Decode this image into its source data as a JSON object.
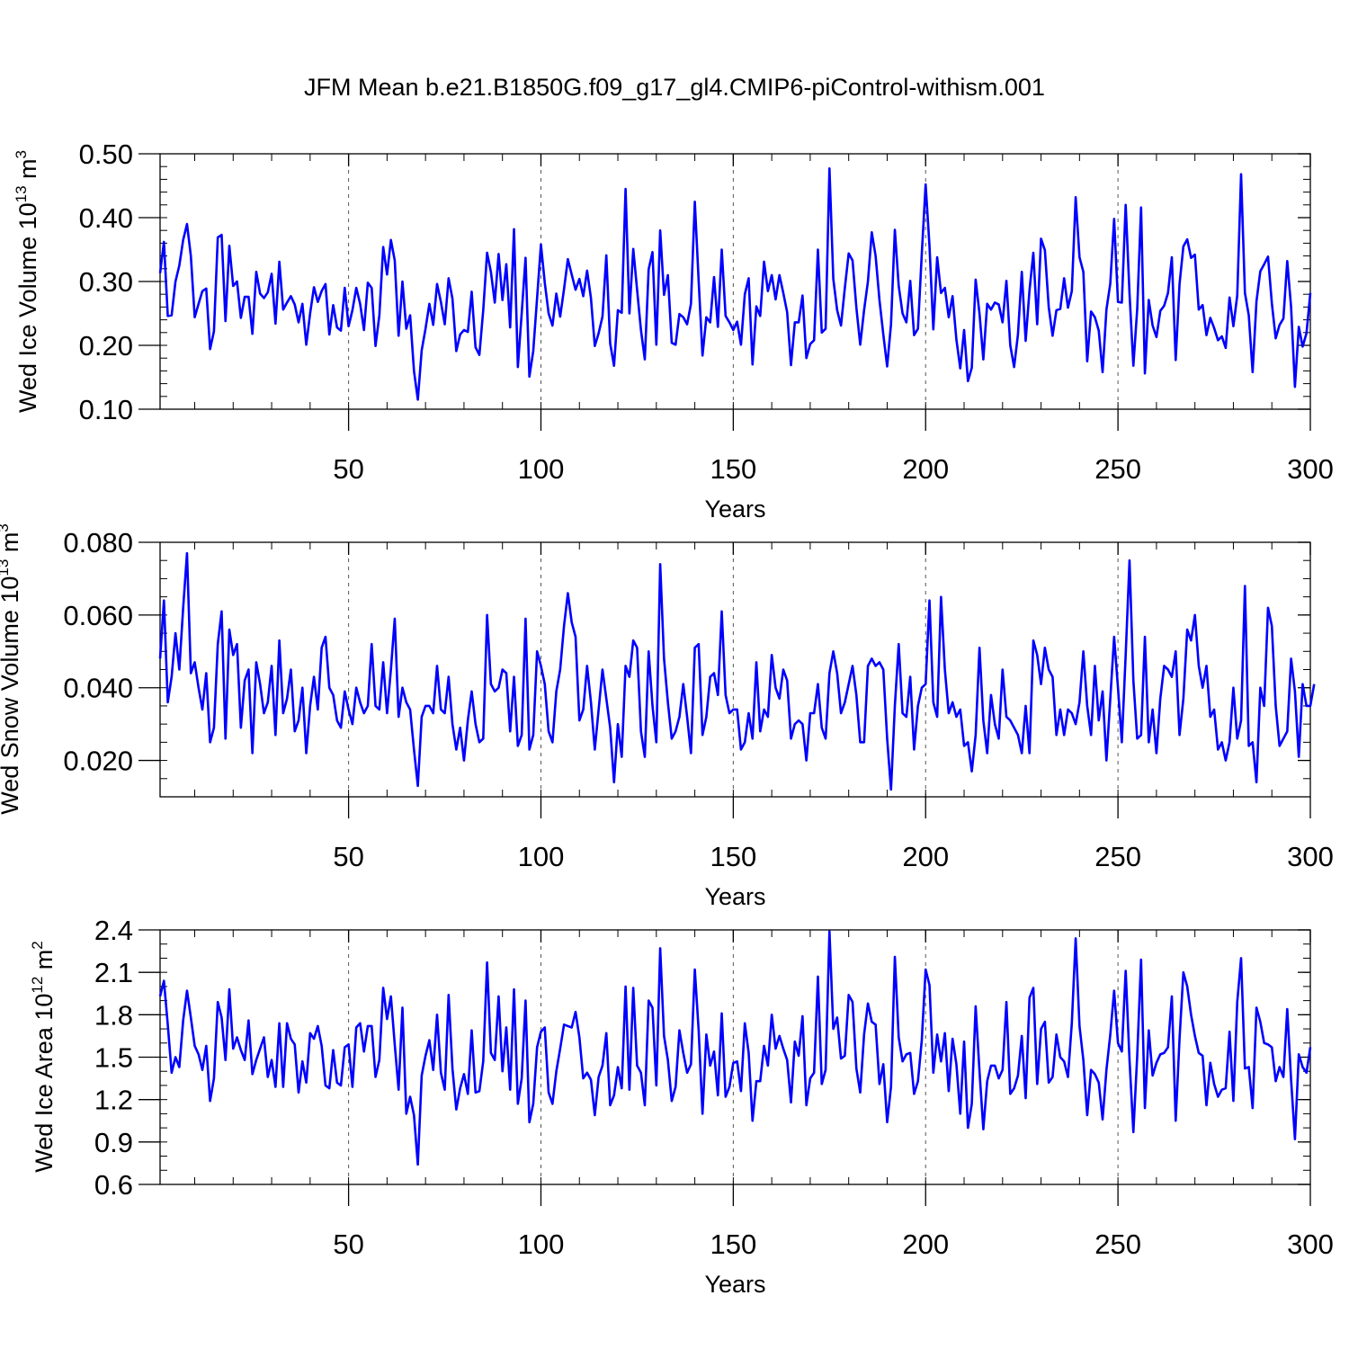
{
  "title": "JFM Mean b.e21.B1850G.f09_g17_gl4.CMIP6-piControl-withism.001",
  "colors": {
    "series": "#0000ff",
    "axis": "#000000",
    "grid": "#555555"
  },
  "chart_data": [
    {
      "type": "line",
      "ylabel_main": "Wed Ice Volume 10",
      "ylabel_exp": "13",
      "ylabel_unit": " m",
      "ylabel_unit_exp": "3",
      "xlabel": "Years",
      "xlim": [
        1,
        300
      ],
      "ylim": [
        0.1,
        0.5
      ],
      "x_ticks": [
        50,
        100,
        150,
        200,
        250,
        300
      ],
      "y_ticks": [
        "0.10",
        "0.20",
        "0.30",
        "0.40",
        "0.50"
      ],
      "y_minor": 0.02,
      "grid_x": [
        50,
        100,
        150,
        200,
        250
      ],
      "series": [
        {
          "name": "Wed Ice Volume",
          "values": [
            0.313,
            0.362,
            0.246,
            0.247,
            0.3,
            0.325,
            0.365,
            0.39,
            0.34,
            0.244,
            0.265,
            0.285,
            0.289,
            0.194,
            0.222,
            0.369,
            0.373,
            0.238,
            0.356,
            0.293,
            0.3,
            0.243,
            0.276,
            0.276,
            0.218,
            0.315,
            0.281,
            0.274,
            0.283,
            0.312,
            0.234,
            0.331,
            0.256,
            0.267,
            0.277,
            0.264,
            0.236,
            0.265,
            0.201,
            0.25,
            0.291,
            0.268,
            0.285,
            0.296,
            0.217,
            0.263,
            0.228,
            0.223,
            0.29,
            0.23,
            0.255,
            0.29,
            0.265,
            0.224,
            0.298,
            0.29,
            0.199,
            0.247,
            0.354,
            0.311,
            0.365,
            0.333,
            0.215,
            0.3,
            0.226,
            0.247,
            0.16,
            0.115,
            0.192,
            0.226,
            0.265,
            0.232,
            0.296,
            0.268,
            0.233,
            0.305,
            0.273,
            0.191,
            0.217,
            0.224,
            0.221,
            0.284,
            0.197,
            0.185,
            0.255,
            0.345,
            0.315,
            0.267,
            0.343,
            0.271,
            0.327,
            0.228,
            0.382,
            0.166,
            0.25,
            0.337,
            0.151,
            0.191,
            0.274,
            0.358,
            0.298,
            0.25,
            0.231,
            0.281,
            0.245,
            0.288,
            0.335,
            0.311,
            0.287,
            0.304,
            0.277,
            0.317,
            0.274,
            0.199,
            0.219,
            0.245,
            0.341,
            0.203,
            0.168,
            0.255,
            0.251,
            0.445,
            0.25,
            0.351,
            0.287,
            0.224,
            0.178,
            0.319,
            0.346,
            0.201,
            0.38,
            0.279,
            0.31,
            0.204,
            0.201,
            0.249,
            0.244,
            0.233,
            0.265,
            0.425,
            0.301,
            0.184,
            0.244,
            0.236,
            0.307,
            0.229,
            0.35,
            0.246,
            0.236,
            0.224,
            0.237,
            0.201,
            0.28,
            0.305,
            0.17,
            0.261,
            0.246,
            0.331,
            0.285,
            0.31,
            0.272,
            0.31,
            0.282,
            0.252,
            0.169,
            0.236,
            0.236,
            0.278,
            0.18,
            0.202,
            0.208,
            0.35,
            0.22,
            0.226,
            0.477,
            0.304,
            0.255,
            0.231,
            0.29,
            0.344,
            0.333,
            0.259,
            0.201,
            0.255,
            0.3,
            0.377,
            0.34,
            0.271,
            0.217,
            0.167,
            0.233,
            0.381,
            0.293,
            0.25,
            0.236,
            0.301,
            0.216,
            0.226,
            0.343,
            0.452,
            0.356,
            0.225,
            0.338,
            0.282,
            0.29,
            0.244,
            0.277,
            0.209,
            0.164,
            0.224,
            0.144,
            0.165,
            0.303,
            0.25,
            0.178,
            0.265,
            0.256,
            0.267,
            0.264,
            0.236,
            0.301,
            0.2,
            0.166,
            0.217,
            0.315,
            0.207,
            0.286,
            0.345,
            0.233,
            0.367,
            0.349,
            0.26,
            0.215,
            0.255,
            0.257,
            0.305,
            0.259,
            0.285,
            0.432,
            0.338,
            0.315,
            0.175,
            0.253,
            0.244,
            0.223,
            0.158,
            0.256,
            0.297,
            0.398,
            0.268,
            0.267,
            0.42,
            0.281,
            0.168,
            0.257,
            0.416,
            0.156,
            0.271,
            0.231,
            0.213,
            0.254,
            0.262,
            0.282,
            0.338,
            0.177,
            0.296,
            0.355,
            0.366,
            0.337,
            0.342,
            0.256,
            0.263,
            0.216,
            0.243,
            0.227,
            0.208,
            0.214,
            0.196,
            0.275,
            0.23,
            0.278,
            0.468,
            0.282,
            0.247,
            0.158,
            0.269,
            0.316,
            0.327,
            0.339,
            0.266,
            0.211,
            0.232,
            0.242,
            0.332,
            0.26,
            0.135,
            0.229,
            0.198,
            0.219,
            0.282
          ]
        }
      ]
    },
    {
      "type": "line",
      "ylabel_main": "Wed Snow Volume 10",
      "ylabel_exp": "13",
      "ylabel_unit": " m",
      "ylabel_unit_exp": "3",
      "xlabel": "Years",
      "xlim": [
        1,
        300
      ],
      "ylim": [
        0.01,
        0.08
      ],
      "x_ticks": [
        50,
        100,
        150,
        200,
        250,
        300
      ],
      "y_ticks": [
        "0.020",
        "0.040",
        "0.060",
        "0.080"
      ],
      "y_minor": 0.005,
      "grid_x": [
        50,
        100,
        150,
        200,
        250
      ],
      "series": [
        {
          "name": "Wed Snow Volume",
          "values": [
            0.048,
            0.064,
            0.036,
            0.043,
            0.055,
            0.045,
            0.062,
            0.077,
            0.044,
            0.047,
            0.04,
            0.034,
            0.044,
            0.025,
            0.029,
            0.052,
            0.061,
            0.026,
            0.056,
            0.049,
            0.052,
            0.029,
            0.042,
            0.045,
            0.022,
            0.047,
            0.041,
            0.033,
            0.036,
            0.046,
            0.027,
            0.053,
            0.033,
            0.037,
            0.045,
            0.028,
            0.031,
            0.04,
            0.022,
            0.035,
            0.043,
            0.034,
            0.051,
            0.054,
            0.04,
            0.038,
            0.031,
            0.029,
            0.039,
            0.034,
            0.03,
            0.04,
            0.036,
            0.033,
            0.035,
            0.052,
            0.035,
            0.034,
            0.047,
            0.033,
            0.045,
            0.059,
            0.032,
            0.04,
            0.036,
            0.034,
            0.023,
            0.013,
            0.032,
            0.035,
            0.035,
            0.033,
            0.046,
            0.034,
            0.033,
            0.043,
            0.03,
            0.023,
            0.029,
            0.02,
            0.031,
            0.039,
            0.03,
            0.025,
            0.026,
            0.06,
            0.041,
            0.039,
            0.04,
            0.045,
            0.044,
            0.028,
            0.043,
            0.024,
            0.027,
            0.059,
            0.023,
            0.027,
            0.05,
            0.046,
            0.041,
            0.028,
            0.025,
            0.039,
            0.045,
            0.057,
            0.066,
            0.058,
            0.054,
            0.031,
            0.034,
            0.046,
            0.036,
            0.023,
            0.034,
            0.045,
            0.037,
            0.029,
            0.014,
            0.03,
            0.021,
            0.046,
            0.043,
            0.053,
            0.051,
            0.028,
            0.021,
            0.05,
            0.035,
            0.025,
            0.074,
            0.048,
            0.036,
            0.026,
            0.028,
            0.032,
            0.041,
            0.032,
            0.022,
            0.051,
            0.052,
            0.027,
            0.032,
            0.043,
            0.044,
            0.038,
            0.061,
            0.038,
            0.033,
            0.034,
            0.034,
            0.023,
            0.025,
            0.033,
            0.026,
            0.047,
            0.028,
            0.034,
            0.032,
            0.049,
            0.04,
            0.037,
            0.045,
            0.042,
            0.026,
            0.03,
            0.031,
            0.03,
            0.02,
            0.033,
            0.033,
            0.041,
            0.029,
            0.026,
            0.044,
            0.05,
            0.044,
            0.033,
            0.036,
            0.041,
            0.046,
            0.038,
            0.025,
            0.025,
            0.046,
            0.048,
            0.046,
            0.047,
            0.045,
            0.026,
            0.012,
            0.035,
            0.052,
            0.033,
            0.032,
            0.043,
            0.023,
            0.035,
            0.04,
            0.041,
            0.064,
            0.036,
            0.032,
            0.065,
            0.045,
            0.033,
            0.036,
            0.032,
            0.034,
            0.024,
            0.025,
            0.017,
            0.027,
            0.051,
            0.031,
            0.022,
            0.038,
            0.03,
            0.026,
            0.045,
            0.032,
            0.031,
            0.029,
            0.027,
            0.022,
            0.035,
            0.022,
            0.053,
            0.049,
            0.041,
            0.051,
            0.045,
            0.043,
            0.027,
            0.034,
            0.027,
            0.034,
            0.033,
            0.03,
            0.036,
            0.05,
            0.035,
            0.027,
            0.046,
            0.031,
            0.039,
            0.02,
            0.037,
            0.054,
            0.04,
            0.025,
            0.049,
            0.075,
            0.042,
            0.026,
            0.027,
            0.054,
            0.025,
            0.034,
            0.022,
            0.037,
            0.046,
            0.045,
            0.043,
            0.05,
            0.027,
            0.037,
            0.056,
            0.053,
            0.06,
            0.046,
            0.04,
            0.046,
            0.032,
            0.034,
            0.023,
            0.025,
            0.02,
            0.025,
            0.04,
            0.026,
            0.031,
            0.068,
            0.024,
            0.025,
            0.014,
            0.04,
            0.035,
            0.062,
            0.057,
            0.035,
            0.024,
            0.026,
            0.028,
            0.048,
            0.039,
            0.021,
            0.041,
            0.035,
            0.035,
            0.041
          ]
        }
      ]
    },
    {
      "type": "line",
      "ylabel_main": "Wed Ice Area 10",
      "ylabel_exp": "12",
      "ylabel_unit": " m",
      "ylabel_unit_exp": "2",
      "xlabel": "Years",
      "xlim": [
        1,
        300
      ],
      "ylim": [
        0.6,
        2.4
      ],
      "x_ticks": [
        50,
        100,
        150,
        200,
        250,
        300
      ],
      "y_ticks": [
        "0.6",
        "0.9",
        "1.2",
        "1.5",
        "1.8",
        "2.1",
        "2.4"
      ],
      "y_minor": 0.1,
      "grid_x": [
        50,
        100,
        150,
        200,
        250
      ],
      "series": [
        {
          "name": "Wed Ice Area",
          "values": [
            1.93,
            2.04,
            1.73,
            1.39,
            1.5,
            1.43,
            1.76,
            1.97,
            1.78,
            1.58,
            1.52,
            1.41,
            1.58,
            1.19,
            1.35,
            1.89,
            1.78,
            1.48,
            1.98,
            1.56,
            1.64,
            1.55,
            1.48,
            1.76,
            1.38,
            1.48,
            1.56,
            1.64,
            1.36,
            1.48,
            1.29,
            1.74,
            1.29,
            1.74,
            1.63,
            1.59,
            1.25,
            1.47,
            1.32,
            1.67,
            1.63,
            1.72,
            1.58,
            1.3,
            1.28,
            1.55,
            1.32,
            1.3,
            1.57,
            1.59,
            1.29,
            1.71,
            1.74,
            1.54,
            1.72,
            1.72,
            1.36,
            1.48,
            1.99,
            1.77,
            1.93,
            1.59,
            1.27,
            1.85,
            1.1,
            1.22,
            1.09,
            0.74,
            1.37,
            1.51,
            1.62,
            1.41,
            1.8,
            1.39,
            1.27,
            1.94,
            1.42,
            1.13,
            1.28,
            1.38,
            1.24,
            1.69,
            1.25,
            1.26,
            1.47,
            2.17,
            1.53,
            1.48,
            1.93,
            1.4,
            1.71,
            1.27,
            1.98,
            1.17,
            1.35,
            1.9,
            1.04,
            1.17,
            1.57,
            1.68,
            1.71,
            1.25,
            1.17,
            1.4,
            1.56,
            1.73,
            1.72,
            1.71,
            1.82,
            1.64,
            1.35,
            1.39,
            1.34,
            1.09,
            1.36,
            1.44,
            1.67,
            1.16,
            1.23,
            1.43,
            1.28,
            2.0,
            1.27,
            1.99,
            1.44,
            1.39,
            1.16,
            1.9,
            1.85,
            1.3,
            2.27,
            1.65,
            1.48,
            1.19,
            1.29,
            1.69,
            1.53,
            1.39,
            1.45,
            2.12,
            1.69,
            1.1,
            1.66,
            1.44,
            1.54,
            1.23,
            1.81,
            1.22,
            1.29,
            1.46,
            1.47,
            1.26,
            1.74,
            1.53,
            1.05,
            1.33,
            1.33,
            1.58,
            1.44,
            1.8,
            1.56,
            1.65,
            1.56,
            1.48,
            1.18,
            1.61,
            1.51,
            1.79,
            1.16,
            1.35,
            1.39,
            2.07,
            1.31,
            1.41,
            2.39,
            1.7,
            1.78,
            1.49,
            1.51,
            1.94,
            1.89,
            1.42,
            1.25,
            1.66,
            1.88,
            1.75,
            1.73,
            1.31,
            1.45,
            1.04,
            1.29,
            2.21,
            1.64,
            1.47,
            1.52,
            1.53,
            1.24,
            1.33,
            1.62,
            2.12,
            2.01,
            1.39,
            1.66,
            1.47,
            1.67,
            1.26,
            1.63,
            1.45,
            1.1,
            1.61,
            1.0,
            1.17,
            1.86,
            1.4,
            0.99,
            1.33,
            1.44,
            1.44,
            1.35,
            1.41,
            1.89,
            1.24,
            1.28,
            1.37,
            1.65,
            1.21,
            1.92,
            1.99,
            1.31,
            1.7,
            1.75,
            1.32,
            1.36,
            1.66,
            1.5,
            1.47,
            1.36,
            1.74,
            2.34,
            1.72,
            1.48,
            1.09,
            1.41,
            1.38,
            1.32,
            1.06,
            1.41,
            1.66,
            1.97,
            1.6,
            1.54,
            2.11,
            1.48,
            0.97,
            1.51,
            2.19,
            1.14,
            1.69,
            1.37,
            1.46,
            1.52,
            1.53,
            1.57,
            1.93,
            1.05,
            1.63,
            2.1,
            2.0,
            1.8,
            1.65,
            1.53,
            1.51,
            1.16,
            1.46,
            1.31,
            1.22,
            1.27,
            1.28,
            1.68,
            1.19,
            1.89,
            2.2,
            1.42,
            1.43,
            1.14,
            1.85,
            1.75,
            1.6,
            1.59,
            1.57,
            1.33,
            1.43,
            1.36,
            1.84,
            1.34,
            0.92,
            1.52,
            1.43,
            1.39,
            1.57
          ]
        }
      ]
    }
  ]
}
